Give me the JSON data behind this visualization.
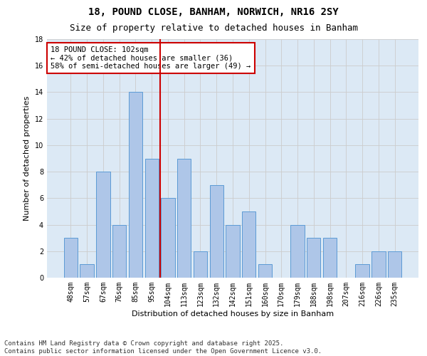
{
  "title1": "18, POUND CLOSE, BANHAM, NORWICH, NR16 2SY",
  "title2": "Size of property relative to detached houses in Banham",
  "xlabel": "Distribution of detached houses by size in Banham",
  "ylabel": "Number of detached properties",
  "categories": [
    "48sqm",
    "57sqm",
    "67sqm",
    "76sqm",
    "85sqm",
    "95sqm",
    "104sqm",
    "113sqm",
    "123sqm",
    "132sqm",
    "142sqm",
    "151sqm",
    "160sqm",
    "170sqm",
    "179sqm",
    "188sqm",
    "198sqm",
    "207sqm",
    "216sqm",
    "226sqm",
    "235sqm"
  ],
  "values": [
    3,
    1,
    8,
    4,
    14,
    9,
    6,
    9,
    2,
    7,
    4,
    5,
    1,
    0,
    4,
    3,
    3,
    0,
    1,
    2,
    2
  ],
  "bar_color": "#aec6e8",
  "bar_edge_color": "#5b9bd5",
  "highlight_index": 6,
  "vline_color": "#cc0000",
  "annotation_text": "18 POUND CLOSE: 102sqm\n← 42% of detached houses are smaller (36)\n58% of semi-detached houses are larger (49) →",
  "annotation_box_color": "#ffffff",
  "annotation_box_edge_color": "#cc0000",
  "ylim": [
    0,
    18
  ],
  "yticks": [
    0,
    2,
    4,
    6,
    8,
    10,
    12,
    14,
    16,
    18
  ],
  "grid_color": "#cccccc",
  "bg_color": "#dce9f5",
  "fig_bg_color": "#ffffff",
  "footer": "Contains HM Land Registry data © Crown copyright and database right 2025.\nContains public sector information licensed under the Open Government Licence v3.0.",
  "title_fontsize": 10,
  "subtitle_fontsize": 9,
  "axis_label_fontsize": 8,
  "tick_fontsize": 7,
  "annotation_fontsize": 7.5,
  "footer_fontsize": 6.5
}
